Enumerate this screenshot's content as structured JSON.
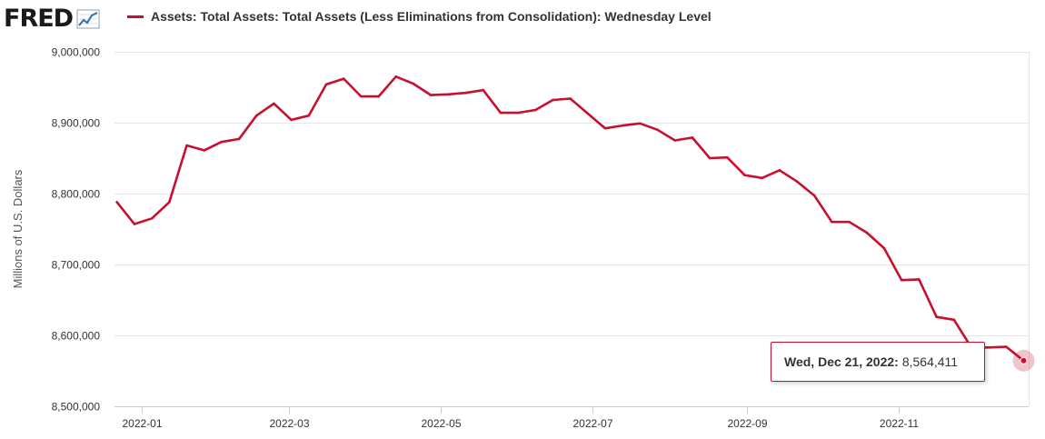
{
  "logo": {
    "text": "FRED"
  },
  "legend": {
    "label": "Assets: Total Assets: Total Assets (Less Eliminations from Consolidation): Wednesday Level",
    "color": "#c8102e"
  },
  "tooltip": {
    "date": "Wed, Dec 21, 2022",
    "separator": ":",
    "value": "8,564,411"
  },
  "chart_data": {
    "type": "line",
    "title": "",
    "xlabel": "",
    "ylabel": "Millions of U.S. Dollars",
    "ylim": [
      8500000,
      9000000
    ],
    "yticks": [
      8500000,
      8600000,
      8700000,
      8800000,
      8900000,
      9000000
    ],
    "ytick_labels": [
      "8,500,000",
      "8,600,000",
      "8,700,000",
      "8,800,000",
      "8,900,000",
      "9,000,000"
    ],
    "xlim": [
      "2021-12-22",
      "2022-12-21"
    ],
    "xticks": [
      "2022-01-01",
      "2022-03-01",
      "2022-05-01",
      "2022-07-01",
      "2022-09-01",
      "2022-11-01"
    ],
    "xtick_labels": [
      "2022-01",
      "2022-03",
      "2022-05",
      "2022-07",
      "2022-09",
      "2022-11"
    ],
    "grid": true,
    "series": [
      {
        "name": "Assets: Total Assets: Total Assets (Less Eliminations from Consolidation): Wednesday Level",
        "color": "#c8102e",
        "x": [
          "2021-12-22",
          "2021-12-29",
          "2022-01-05",
          "2022-01-12",
          "2022-01-19",
          "2022-01-26",
          "2022-02-02",
          "2022-02-09",
          "2022-02-16",
          "2022-02-23",
          "2022-03-02",
          "2022-03-09",
          "2022-03-16",
          "2022-03-23",
          "2022-03-30",
          "2022-04-06",
          "2022-04-13",
          "2022-04-20",
          "2022-04-27",
          "2022-05-04",
          "2022-05-11",
          "2022-05-18",
          "2022-05-25",
          "2022-06-01",
          "2022-06-08",
          "2022-06-15",
          "2022-06-22",
          "2022-06-29",
          "2022-07-06",
          "2022-07-13",
          "2022-07-20",
          "2022-07-27",
          "2022-08-03",
          "2022-08-10",
          "2022-08-17",
          "2022-08-24",
          "2022-08-31",
          "2022-09-07",
          "2022-09-14",
          "2022-09-21",
          "2022-09-28",
          "2022-10-05",
          "2022-10-12",
          "2022-10-19",
          "2022-10-26",
          "2022-11-02",
          "2022-11-09",
          "2022-11-16",
          "2022-11-23",
          "2022-11-30",
          "2022-12-07",
          "2022-12-14",
          "2022-12-21"
        ],
        "y": [
          8788000,
          8757000,
          8765000,
          8788000,
          8868000,
          8861000,
          8873000,
          8877000,
          8910000,
          8927000,
          8904000,
          8910000,
          8954000,
          8962000,
          8937000,
          8937000,
          8965000,
          8955000,
          8939000,
          8940000,
          8942000,
          8946000,
          8914000,
          8914000,
          8918000,
          8932000,
          8934000,
          8913000,
          8892000,
          8896000,
          8899000,
          8890000,
          8875000,
          8879000,
          8850000,
          8851000,
          8826000,
          8822000,
          8833000,
          8817000,
          8797000,
          8760000,
          8760000,
          8745000,
          8723000,
          8678000,
          8679000,
          8626000,
          8622000,
          8583000,
          8583000,
          8584000,
          8564411
        ]
      }
    ]
  }
}
